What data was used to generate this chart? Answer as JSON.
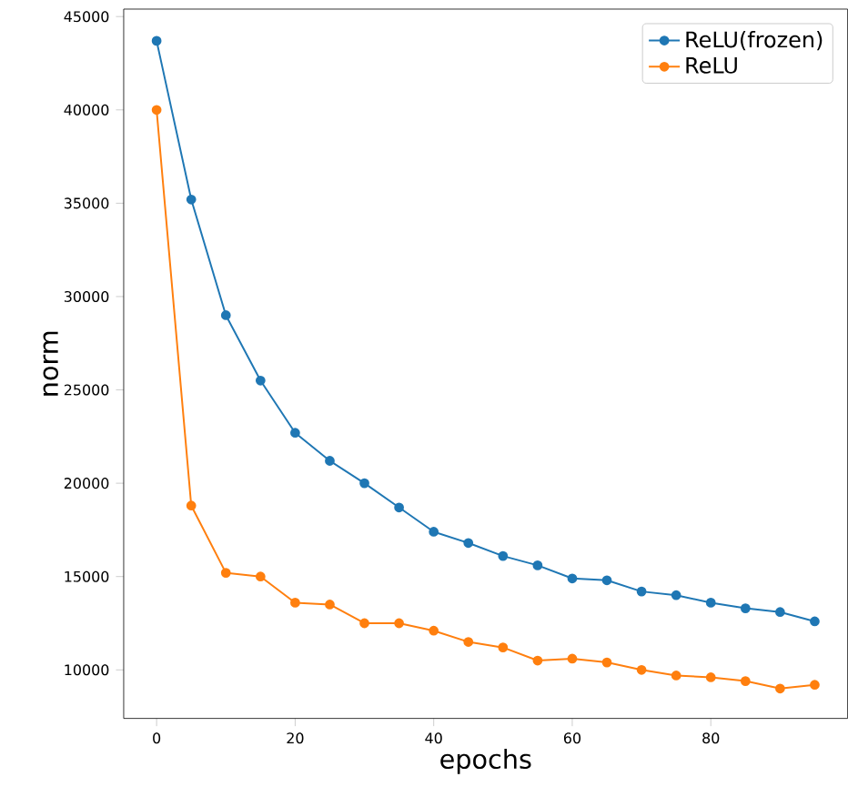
{
  "chart_data": {
    "type": "line",
    "xlabel": "epochs",
    "ylabel": "norm",
    "x": [
      0,
      5,
      10,
      15,
      20,
      25,
      30,
      35,
      40,
      45,
      50,
      55,
      60,
      65,
      70,
      75,
      80,
      85,
      90,
      95
    ],
    "series": [
      {
        "name": "ReLU(frozen)",
        "color": "#1f77b4",
        "values": [
          43700,
          35200,
          29000,
          25500,
          22700,
          21200,
          20000,
          18700,
          17400,
          16800,
          16100,
          15600,
          14900,
          14800,
          14200,
          14000,
          13600,
          13300,
          13100,
          12600
        ]
      },
      {
        "name": "ReLU",
        "color": "#ff7f0e",
        "values": [
          40000,
          18800,
          15200,
          15000,
          13600,
          13500,
          12500,
          12500,
          12100,
          11500,
          11200,
          10500,
          10600,
          10400,
          10000,
          9700,
          9600,
          9400,
          9000,
          9200
        ]
      }
    ],
    "xlim": [
      -4.75,
      99.75
    ],
    "ylim": [
      7400,
      45400
    ],
    "xticks": [
      0,
      20,
      40,
      60,
      80
    ],
    "yticks": [
      10000,
      15000,
      20000,
      25000,
      30000,
      35000,
      40000,
      45000
    ],
    "legend": "top right",
    "marker": "circle",
    "grid": false
  }
}
